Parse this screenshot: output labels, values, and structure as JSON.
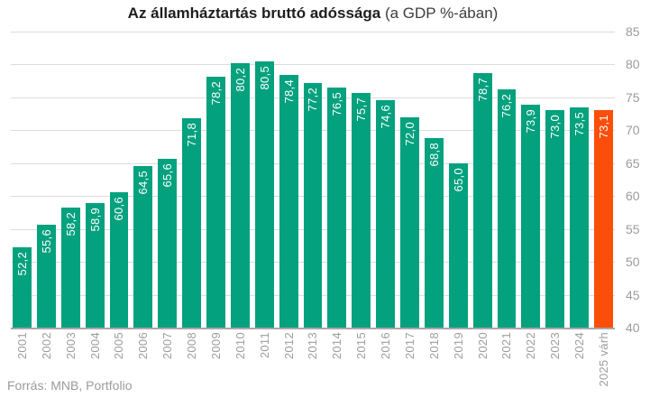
{
  "title": {
    "bold": "Az államháztartás bruttó adóssága",
    "regular": " (a GDP %-ában)"
  },
  "source": "Forrás: MNB, Portfolio",
  "chart_data": {
    "type": "bar",
    "title": "Az államháztartás bruttó adóssága (a GDP %-ában)",
    "categories": [
      "2001",
      "2002",
      "2003",
      "2004",
      "2005",
      "2006",
      "2007",
      "2008",
      "2009",
      "2010",
      "2011",
      "2012",
      "2013",
      "2014",
      "2015",
      "2016",
      "2017",
      "2018",
      "2019",
      "2020",
      "2021",
      "2022",
      "2023",
      "2024",
      "2025 várh"
    ],
    "values": [
      52.2,
      55.6,
      58.2,
      58.9,
      60.6,
      64.5,
      65.6,
      71.8,
      78.2,
      80.2,
      80.5,
      78.4,
      77.2,
      76.5,
      75.7,
      74.6,
      72.0,
      68.8,
      65.0,
      78.7,
      76.2,
      73.9,
      73.0,
      73.5,
      73.1
    ],
    "value_labels": [
      "52,2",
      "55,6",
      "58,2",
      "58,9",
      "60,6",
      "64,5",
      "65,6",
      "71,8",
      "78,2",
      "80,2",
      "80,5",
      "78,4",
      "77,2",
      "76,5",
      "75,7",
      "74,6",
      "72,0",
      "68,8",
      "65,0",
      "78,7",
      "76,2",
      "73,9",
      "73,0",
      "73,5",
      "73,1"
    ],
    "xlabel": "",
    "ylabel": "",
    "ylim": [
      40,
      85
    ],
    "yticks": [
      85,
      80,
      75,
      70,
      65,
      60,
      55,
      50,
      45,
      40
    ],
    "yaxis_side": "right",
    "grid": true,
    "legend": false,
    "highlight_index": 24,
    "colors": {
      "bar": "#04a17e",
      "highlight": "#fb4e0a",
      "gridline": "#dcdcdc",
      "axis_line": "#a8a8a8",
      "tick_text": "#9b9b9b",
      "value_text": "#ffffff"
    }
  }
}
